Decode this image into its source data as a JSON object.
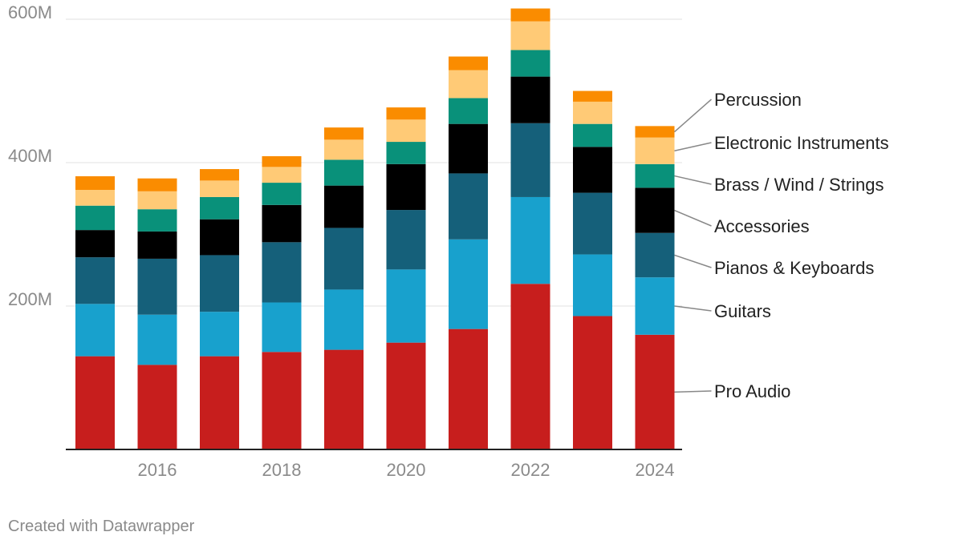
{
  "chart_data": {
    "type": "bar",
    "stacked": true,
    "categories": [
      "2015",
      "2016",
      "2017",
      "2018",
      "2019",
      "2020",
      "2021",
      "2022",
      "2023",
      "2024"
    ],
    "x_tick_labels": [
      "2016",
      "2018",
      "2020",
      "2022",
      "2024"
    ],
    "y_ticks": [
      200,
      400,
      600
    ],
    "y_tick_labels": [
      "200M",
      "400M",
      "600M"
    ],
    "ylim": [
      0,
      600
    ],
    "unit": "M",
    "grid": true,
    "legend_position": "right",
    "series": [
      {
        "name": "Pro Audio",
        "color": "#c71e1d",
        "values": [
          130,
          118,
          130,
          136,
          139,
          149,
          168,
          231,
          186,
          160
        ]
      },
      {
        "name": "Guitars",
        "color": "#18a1cd",
        "values": [
          73,
          70,
          62,
          69,
          84,
          102,
          125,
          121,
          86,
          80
        ]
      },
      {
        "name": "Pianos & Keyboards",
        "color": "#15607a",
        "values": [
          65,
          78,
          79,
          84,
          86,
          83,
          92,
          103,
          86,
          62
        ]
      },
      {
        "name": "Accessories",
        "color": "#000000",
        "values": [
          38,
          38,
          50,
          52,
          59,
          64,
          69,
          65,
          64,
          63
        ]
      },
      {
        "name": "Brass / Wind / Strings",
        "color": "#09917a",
        "values": [
          34,
          31,
          31,
          31,
          36,
          31,
          36,
          37,
          32,
          33
        ]
      },
      {
        "name": "Electronic Instruments",
        "color": "#ffca76",
        "values": [
          22,
          25,
          23,
          22,
          28,
          31,
          39,
          40,
          31,
          37
        ]
      },
      {
        "name": "Percussion",
        "color": "#fa8c00",
        "values": [
          19,
          18,
          16,
          15,
          17,
          17,
          19,
          18,
          15,
          16
        ]
      }
    ]
  },
  "credit": "Created with Datawrapper"
}
